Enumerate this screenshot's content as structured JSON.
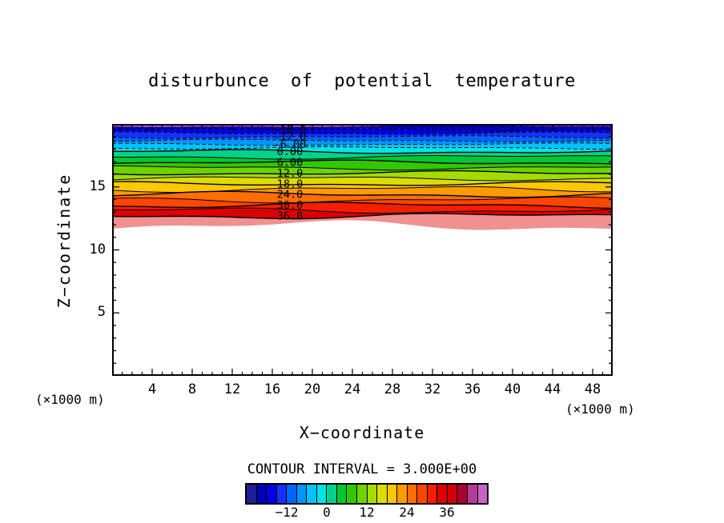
{
  "chart_data": {
    "type": "filled-contour",
    "title": "disturbunce of potential temperature",
    "xlabel": "X−coordinate",
    "ylabel": "Z−coordinate",
    "x_unit_left": "(×1000 m)",
    "x_unit_right": "(×1000 m)",
    "xlim": [
      0,
      50
    ],
    "ylim": [
      0,
      20
    ],
    "x_ticks": [
      4,
      8,
      12,
      16,
      20,
      24,
      28,
      32,
      36,
      40,
      44,
      48
    ],
    "y_ticks": [
      5,
      10,
      15
    ],
    "contour_interval": 3.0,
    "contour_interval_label": "CONTOUR INTERVAL = 3.000E+00",
    "levels": [
      -21,
      -18,
      -15,
      -12,
      -9,
      -6,
      -3,
      0,
      3,
      6,
      9,
      12,
      15,
      18,
      21,
      24,
      27,
      30,
      33,
      36
    ],
    "labeled_contours": [
      {
        "value": -18,
        "text": "-18.0"
      },
      {
        "value": -12,
        "text": "-12.0"
      },
      {
        "value": -6,
        "text": "-6.00"
      },
      {
        "value": 0,
        "text": "0.00"
      },
      {
        "value": 6,
        "text": "6.00"
      },
      {
        "value": 12,
        "text": "12.0"
      },
      {
        "value": 18,
        "text": "18.0"
      },
      {
        "value": 24,
        "text": "24.0"
      },
      {
        "value": 30,
        "text": "30.0"
      },
      {
        "value": 36,
        "text": "36.0"
      }
    ],
    "field_profile": {
      "description": "Nearly horizontal layered field; value increases downward from below -21 at z=20 km to +36 near z=12.7 km, colored fill fades out near z=11.9 km, white (no data) below",
      "z_at_value_0_km": 17.8,
      "km_per_unit_neg": 0.0976,
      "km_per_unit_pos": 0.1417,
      "fade_z_km": 11.9,
      "max_colored_value": 39
    },
    "colorbar": {
      "min": -24,
      "max": 48,
      "step": 3,
      "tick_values": [
        -12,
        0,
        12,
        24,
        36
      ],
      "tick_labels": [
        "−12",
        "0",
        "12",
        "24",
        "36"
      ],
      "colors": [
        "#1e1e96",
        "#0000b4",
        "#0000e1",
        "#1432ff",
        "#0064ff",
        "#0096ff",
        "#00c3ff",
        "#00e6e6",
        "#00d28c",
        "#00c832",
        "#32c800",
        "#6ed200",
        "#a5dc00",
        "#dcdc00",
        "#ffc800",
        "#ff9b00",
        "#ff6e00",
        "#ff4600",
        "#f51e00",
        "#dc0000",
        "#d20000",
        "#aa0032",
        "#b43c96",
        "#c864c8"
      ]
    },
    "styles": {
      "negative_line_style": "dashed",
      "positive_line_style": "solid",
      "line_color": "#000000",
      "top_line_color": "#c83cc8",
      "out_of_range_top_fill": "#c864c8",
      "fade_fill": "#f09090"
    }
  }
}
